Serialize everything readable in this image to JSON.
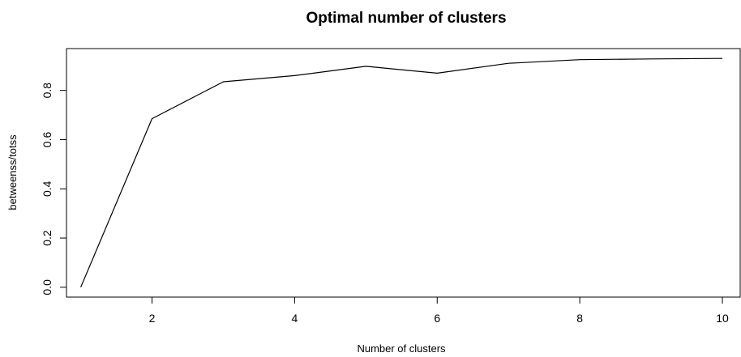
{
  "chart_data": {
    "type": "line",
    "title": "Optimal number of clusters",
    "xlabel": "Number of clusters",
    "ylabel": "betweenss/totss",
    "x": [
      1,
      2,
      3,
      4,
      5,
      6,
      7,
      8,
      9,
      10
    ],
    "series": [
      {
        "values": [
          0.0,
          0.685,
          0.835,
          0.86,
          0.898,
          0.87,
          0.91,
          0.925,
          0.928,
          0.93
        ]
      }
    ],
    "xlim": [
      0.8,
      10.25
    ],
    "ylim": [
      -0.04,
      0.97
    ],
    "xticks": [
      2,
      4,
      6,
      8,
      10
    ],
    "yticks": [
      0.0,
      0.2,
      0.4,
      0.6,
      0.8
    ],
    "ytick_labels": [
      "0.0",
      "0.2",
      "0.4",
      "0.6",
      "0.8"
    ],
    "grid": false,
    "line_color": "#000000"
  }
}
